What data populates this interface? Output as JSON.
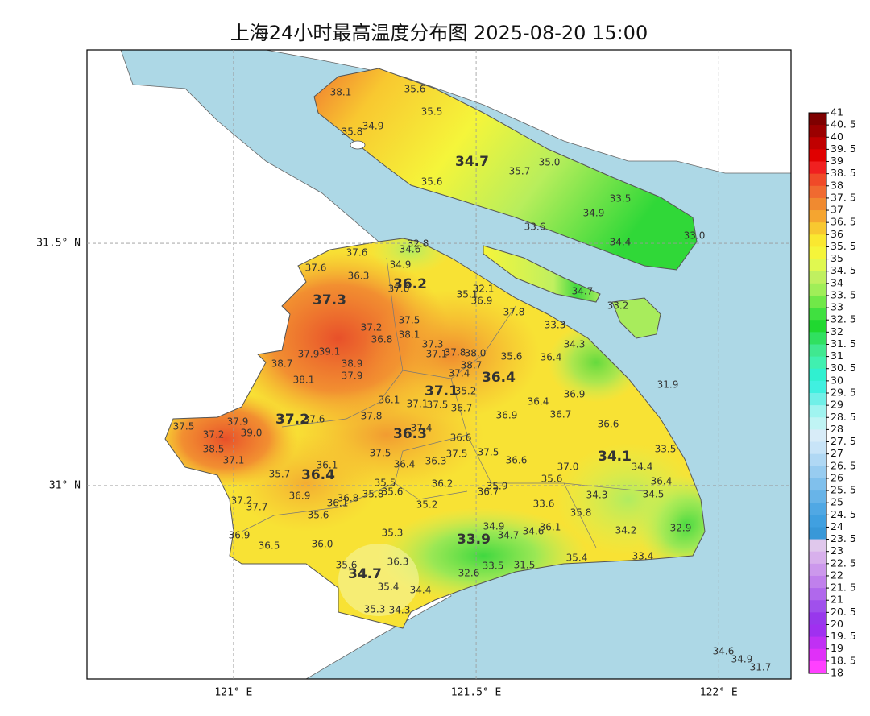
{
  "chart_data": {
    "type": "map",
    "title": "上海24小时最高温度分布图 2025-08-20 15:00",
    "xlim": [
      120.698,
      122.149
    ],
    "ylim": [
      30.601,
      31.899
    ],
    "xticks": [
      {
        "value": 121,
        "label": "121° E"
      },
      {
        "value": 121.5,
        "label": "121.5° E"
      },
      {
        "value": 122,
        "label": "122° E"
      }
    ],
    "yticks": [
      {
        "value": 31,
        "label": "31° N"
      },
      {
        "value": 31.5,
        "label": "31.5° N"
      }
    ],
    "grid": true,
    "stations": [
      38.1,
      35.6,
      35.5,
      34.9,
      35.8,
      35.7,
      {
        "value": 35,
        "label": "35.0"
      },
      35.6,
      33.5,
      34.9,
      33.6,
      34.4,
      {
        "value": 33,
        "label": "33.0"
      },
      34.7,
      33.2,
      32.8,
      34.6,
      37.6,
      37.6,
      34.9,
      36.3,
      {
        "value": 37,
        "label": "37.0"
      },
      32.1,
      35.1,
      36.9,
      37.8,
      37.5,
      37.2,
      33.3,
      38.1,
      36.8,
      37.3,
      34.3,
      37.9,
      39.1,
      37.1,
      37.8,
      {
        "value": 38,
        "label": "38.0"
      },
      35.6,
      36.4,
      38.7,
      38.9,
      38.7,
      37.9,
      37.4,
      38.1,
      31.9,
      35.2,
      36.1,
      36.4,
      36.9,
      37.1,
      37.5,
      36.7,
      36.9,
      36.7,
      37.5,
      37.9,
      37.6,
      37.8,
      36.6,
      37.2,
      {
        "value": 39,
        "label": "39.0"
      },
      37.4,
      36.6,
      38.5,
      33.5,
      37.5,
      37.5,
      37.5,
      37.1,
      36.4,
      36.3,
      36.6,
      {
        "value": 37,
        "label": "37.0"
      },
      34.4,
      36.1,
      35.7,
      35.6,
      36.4,
      35.5,
      36.2,
      35.9,
      36.7,
      34.3,
      34.5,
      36.9,
      36.8,
      35.8,
      35.6,
      37.2,
      36.1,
      37.7,
      35.2,
      33.6,
      35.8,
      35.6,
      34.9,
      36.1,
      34.6,
      34.2,
      32.9,
      36.9,
      35.3,
      34.7,
      36.5,
      {
        "value": 36,
        "label": "36.0"
      },
      35.4,
      33.4,
      36.3,
      35.6,
      33.5,
      31.5,
      32.6,
      35.4,
      34.4,
      35.3,
      34.3,
      34.6,
      34.9,
      31.7
    ],
    "districts": [
      34.7,
      36.2,
      37.3,
      36.4,
      37.1,
      37.2,
      36.3,
      34.1,
      36.4,
      33.9,
      34.7
    ],
    "clim": [
      18,
      41
    ],
    "colorbar_ticks": [
      41,
      {
        "value": 40.5,
        "label": "40. 5"
      },
      40,
      {
        "value": 39.5,
        "label": "39. 5"
      },
      39,
      {
        "value": 38.5,
        "label": "38. 5"
      },
      38,
      {
        "value": 37.5,
        "label": "37. 5"
      },
      37,
      {
        "value": 36.5,
        "label": "36. 5"
      },
      36,
      {
        "value": 35.5,
        "label": "35. 5"
      },
      35,
      {
        "value": 34.5,
        "label": "34. 5"
      },
      34,
      {
        "value": 33.5,
        "label": "33. 5"
      },
      33,
      {
        "value": 32.5,
        "label": "32. 5"
      },
      32,
      {
        "value": 31.5,
        "label": "31. 5"
      },
      31,
      {
        "value": 30.5,
        "label": "30. 5"
      },
      30,
      {
        "value": 29.5,
        "label": "29. 5"
      },
      29,
      {
        "value": 28.5,
        "label": "28. 5"
      },
      28,
      {
        "value": 27.5,
        "label": "27. 5"
      },
      27,
      {
        "value": 26.5,
        "label": "26. 5"
      },
      26,
      {
        "value": 25.5,
        "label": "25. 5"
      },
      25,
      {
        "value": 24.5,
        "label": "24. 5"
      },
      24,
      {
        "value": 23.5,
        "label": "23. 5"
      },
      23,
      {
        "value": 22.5,
        "label": "22. 5"
      },
      22,
      {
        "value": 21.5,
        "label": "21. 5"
      },
      21,
      {
        "value": 20.5,
        "label": "20. 5"
      },
      20,
      {
        "value": 19.5,
        "label": "19. 5"
      },
      19,
      {
        "value": 18.5,
        "label": "18. 5"
      },
      18
    ],
    "colorbar_colors": [
      "#7f0000",
      "#9b0000",
      "#c00000",
      "#e00000",
      "#f02020",
      "#f04a28",
      "#f06a30",
      "#f08a30",
      "#f5a530",
      "#f8c830",
      "#fae830",
      "#f5f53a",
      "#e0f850",
      "#c0f060",
      "#a0ee58",
      "#70e848",
      "#40e040",
      "#20d830",
      "#30e060",
      "#40e890",
      "#40f0b0",
      "#30f0d0",
      "#40f0e0",
      "#70f0e8",
      "#a0f4f0",
      "#c0f4f4",
      "#d8ecf8",
      "#c8e4f8",
      "#b0d8f4",
      "#98ccf0",
      "#80c0ec",
      "#68b4e8",
      "#50a8e4",
      "#40a0e0",
      "#3898d8",
      "#e0c8ec",
      "#d8b0ec",
      "#cc98ec",
      "#c080ec",
      "#b068ec",
      "#a050ec",
      "#9838ec",
      "#a030f0",
      "#c030f4",
      "#e030f8",
      "#ff40ff"
    ]
  }
}
